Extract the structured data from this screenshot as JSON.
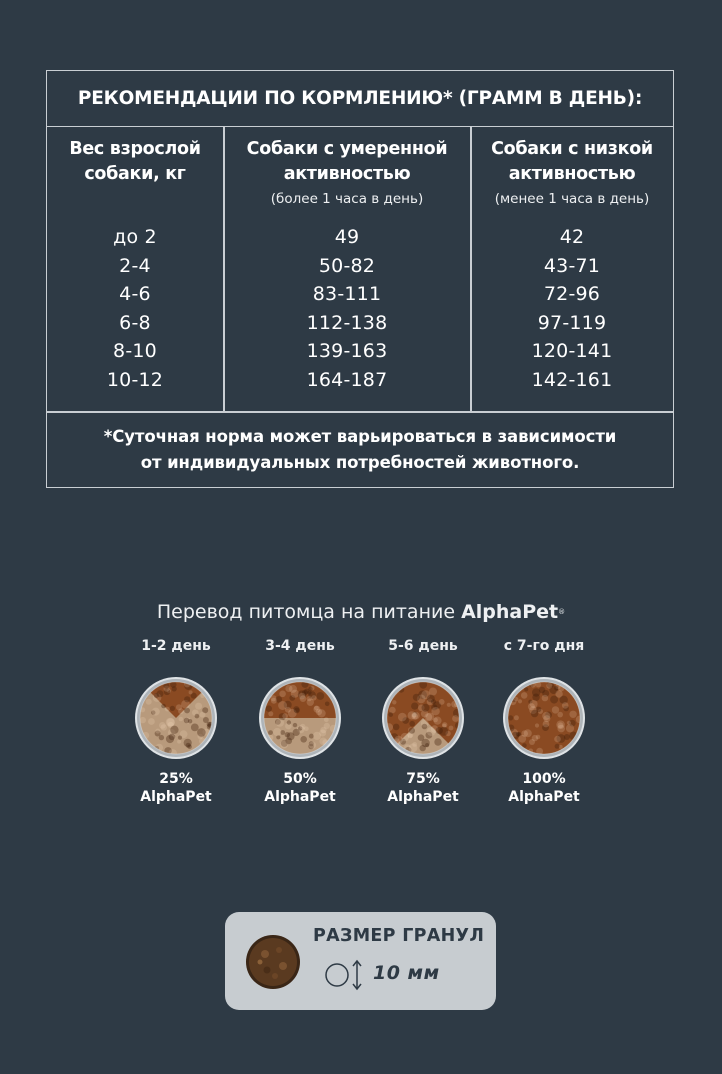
{
  "feeding_table": {
    "title": "РЕКОМЕНДАЦИИ ПО КОРМЛЕНИЮ* (ГРАММ В ДЕНЬ):",
    "columns": [
      {
        "header_line1": "Вес взрослой",
        "header_line2": "собаки, кг",
        "sub": "",
        "values": [
          "до 2",
          "2-4",
          "4-6",
          "6-8",
          "8-10",
          "10-12"
        ]
      },
      {
        "header_line1": "Собаки с умеренной",
        "header_line2": "активностью",
        "sub": "(более 1 часа в день)",
        "values": [
          "49",
          "50-82",
          "83-111",
          "112-138",
          "139-163",
          "164-187"
        ]
      },
      {
        "header_line1": "Собаки с низкой",
        "header_line2": "активностью",
        "sub": "(менее 1 часа в день)",
        "values": [
          "42",
          "43-71",
          "72-96",
          "97-119",
          "120-141",
          "142-161"
        ]
      }
    ],
    "footnote_line1": "*Суточная норма может варьироваться в зависимости",
    "footnote_line2": "от индивидуальных потребностей животного."
  },
  "transition": {
    "title_prefix": "Перевод питомца на питание",
    "brand": "AlphaPet",
    "brand_mark": "®",
    "stages": [
      {
        "day": "1-2 день",
        "percent": "25%",
        "brand": "AlphaPet",
        "share": 0.25
      },
      {
        "day": "3-4 день",
        "percent": "50%",
        "brand": "AlphaPet",
        "share": 0.5
      },
      {
        "day": "5-6 день",
        "percent": "75%",
        "brand": "AlphaPet",
        "share": 0.75
      },
      {
        "day": "с 7-го дня",
        "percent": "100%",
        "brand": "AlphaPet",
        "share": 1.0
      }
    ]
  },
  "kibble_size": {
    "title": "РАЗМЕР ГРАНУЛ",
    "value": "10 мм"
  },
  "colors": {
    "background": "#2e3a45",
    "card": "#c7ccd0",
    "kibble_brand": "#8a4a22",
    "kibble_other": "#b89a7c"
  }
}
